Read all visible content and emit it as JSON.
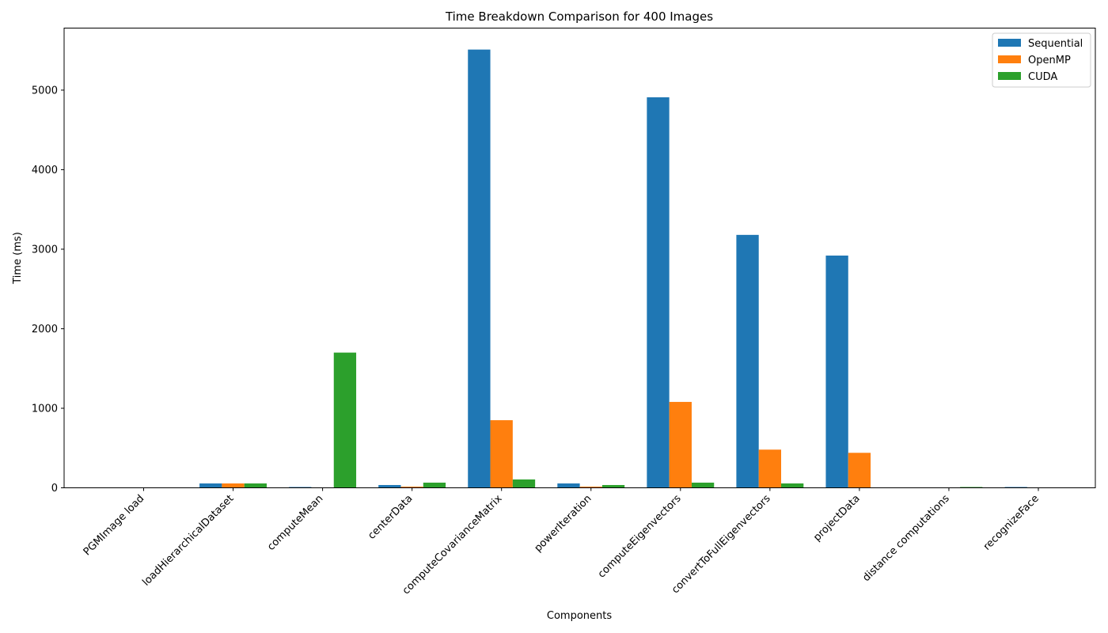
{
  "chart_data": {
    "type": "bar",
    "title": "Time Breakdown Comparison for 400 Images",
    "xlabel": "Components",
    "ylabel": "Time (ms)",
    "ylim": [
      0,
      5780
    ],
    "yticks": [
      0,
      1000,
      2000,
      3000,
      4000,
      5000
    ],
    "categories": [
      "PGMImage load",
      "loadHierarchicalDataset",
      "computeMean",
      "centerData",
      "computeCovarianceMatrix",
      "powerIteration",
      "computeEigenvectors",
      "convertToFullEigenvectors",
      "projectData",
      "distance computations",
      "recognizeFace"
    ],
    "series": [
      {
        "name": "Sequential",
        "color": "#1f77b4",
        "values": [
          0,
          55,
          10,
          35,
          5510,
          55,
          4910,
          3180,
          2920,
          0,
          10
        ]
      },
      {
        "name": "OpenMP",
        "color": "#ff7f0e",
        "values": [
          0,
          55,
          0,
          15,
          850,
          15,
          1080,
          480,
          440,
          0,
          0
        ]
      },
      {
        "name": "CUDA",
        "color": "#2ca02c",
        "values": [
          0,
          55,
          1700,
          65,
          105,
          35,
          65,
          55,
          0,
          10,
          0
        ]
      }
    ],
    "grid": false,
    "legend": "top-right"
  }
}
